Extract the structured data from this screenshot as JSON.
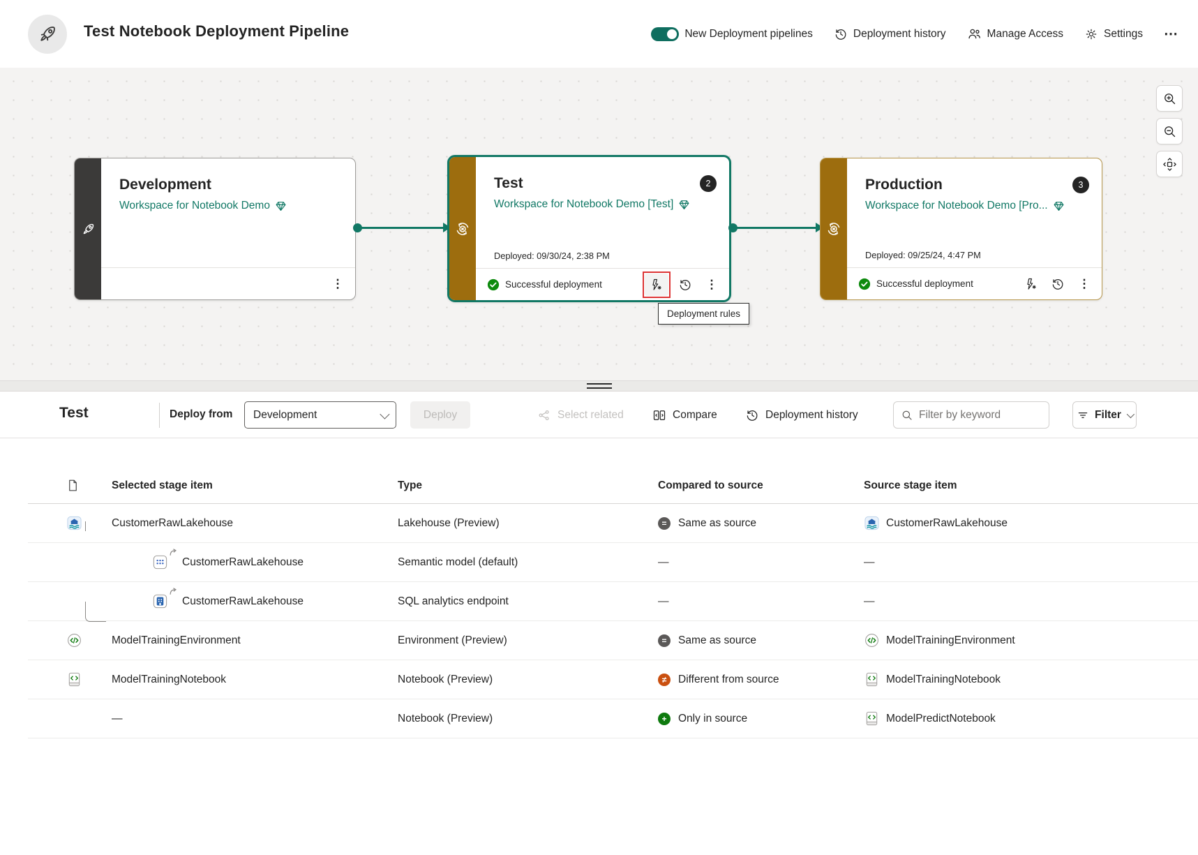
{
  "colors": {
    "accent_teal": "#117865",
    "stage_gold": "#9d6d0e",
    "dev_strip_dark": "#3b3a39",
    "success_green": "#0e8a0e",
    "different_orange": "#ca5010",
    "only_in_source_green": "#0e7a0e",
    "highlight_red": "#dd3434",
    "badge_dark": "#242424"
  },
  "header": {
    "title": "Test Notebook Deployment Pipeline",
    "toggle": {
      "label": "New Deployment pipelines",
      "state": "on"
    },
    "deployment_history_label": "Deployment history",
    "manage_access_label": "Manage Access",
    "settings_label": "Settings",
    "more_label": "⋯"
  },
  "canvas": {
    "tooltip": "Deployment rules",
    "stages": [
      {
        "name": "Development",
        "workspace": "Workspace for Notebook Demo"
      },
      {
        "name": "Test",
        "workspace": "Workspace for Notebook Demo [Test]",
        "badge": "2",
        "deployed": "Deployed: 09/30/24, 2:38 PM",
        "status": "Successful deployment"
      },
      {
        "name": "Production",
        "workspace": "Workspace for Notebook Demo [Pro...",
        "badge": "3",
        "deployed": "Deployed: 09/25/24, 4:47 PM",
        "status": "Successful deployment"
      }
    ]
  },
  "toolbar": {
    "stage_title": "Test",
    "deploy_from_label": "Deploy from",
    "deploy_from_value": "Development",
    "deploy_label": "Deploy",
    "select_related_label": "Select related",
    "compare_label": "Compare",
    "history_label": "Deployment history",
    "search_placeholder": "Filter by keyword",
    "filter_label": "Filter"
  },
  "table": {
    "columns": {
      "selected": "Selected stage item",
      "type": "Type",
      "compared": "Compared to source",
      "source": "Source stage item"
    },
    "rows": [
      {
        "indent": 0,
        "icon": "lakehouse",
        "name": "CustomerRawLakehouse",
        "type": "Lakehouse (Preview)",
        "compare": {
          "kind": "same",
          "label": "Same as source"
        },
        "source": {
          "icon": "lakehouse",
          "name": "CustomerRawLakehouse"
        }
      },
      {
        "indent": 1,
        "tree": "pass",
        "icon": "semantic",
        "name": "CustomerRawLakehouse",
        "type": "Semantic model (default)",
        "compare": {
          "kind": "dash",
          "label": "—"
        },
        "source": {
          "icon": null,
          "name": "—"
        }
      },
      {
        "indent": 1,
        "tree": "elbow",
        "icon": "sql",
        "name": "CustomerRawLakehouse",
        "type": "SQL analytics endpoint",
        "compare": {
          "kind": "dash",
          "label": "—"
        },
        "source": {
          "icon": null,
          "name": "—"
        }
      },
      {
        "indent": 0,
        "icon": "environment",
        "name": "ModelTrainingEnvironment",
        "type": "Environment (Preview)",
        "compare": {
          "kind": "same",
          "label": "Same as source"
        },
        "source": {
          "icon": "environment",
          "name": "ModelTrainingEnvironment"
        }
      },
      {
        "indent": 0,
        "icon": "notebook",
        "name": "ModelTrainingNotebook",
        "type": "Notebook (Preview)",
        "compare": {
          "kind": "different",
          "label": "Different from source"
        },
        "source": {
          "icon": "notebook",
          "name": "ModelTrainingNotebook"
        }
      },
      {
        "indent": 0,
        "icon": null,
        "name": "—",
        "type": "Notebook (Preview)",
        "compare": {
          "kind": "only",
          "label": "Only in source"
        },
        "source": {
          "icon": "notebook",
          "name": "ModelPredictNotebook"
        }
      }
    ]
  }
}
